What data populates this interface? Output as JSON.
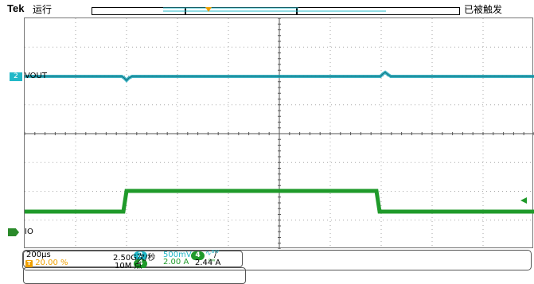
{
  "header": {
    "brand": "Tek",
    "run_state": "运行",
    "trigger_status": "已被触发"
  },
  "channels": [
    {
      "number": "2",
      "name": "VOUT",
      "color": "#22b8c8",
      "scale": "500mV",
      "coupling_icon": "bandwidth-limit-icon"
    },
    {
      "number": "4",
      "name": "IO",
      "color": "#1f9a2a",
      "scale": "2.00 A",
      "coupling_icon": "bandwidth-limit-icon"
    }
  ],
  "horizontal": {
    "time_per_div": "200µs",
    "trigger_position": "20.00 %",
    "sample_rate": "2.50G次/秒",
    "record_length": "10M 点"
  },
  "trigger": {
    "source": "4",
    "slope": "/",
    "level": "2.44 A",
    "marker": "T"
  },
  "colors": {
    "ch2": "#22b8c8",
    "ch4": "#1f9a2a",
    "trigger": "#f0a000",
    "grid": "#999999"
  }
}
